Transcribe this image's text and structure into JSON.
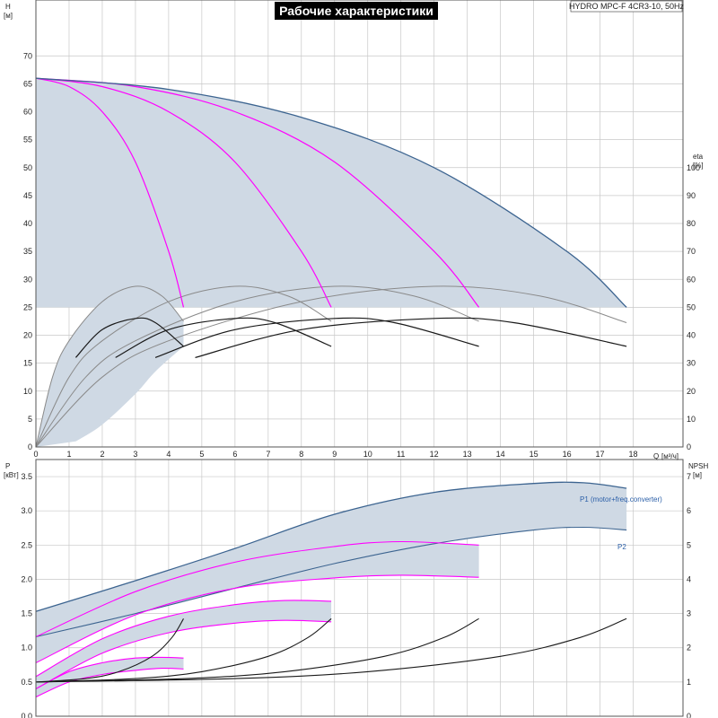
{
  "title": "Рабочие характеристики",
  "model": "HYDRO MPC-F 4CR3-10, 50Hz",
  "colors": {
    "area": "#cfd9e4",
    "envelope": "#3c6490",
    "pump_curve": "#ff00ff",
    "npsh": "#1a1a1a",
    "eta_light": "#8a8a8a",
    "grid": "#c8c8c8"
  },
  "chart_data": [
    {
      "type": "line",
      "name": "top",
      "xlabel": "Q",
      "xunit": "[м³/ч]",
      "ylabel_left": "H",
      "yunit_left": "[м]",
      "ylabel_right": "eta",
      "yunit_right": "[%]",
      "xlim": [
        0,
        19.5
      ],
      "ylim_left": [
        0,
        80
      ],
      "ylim_right": [
        0,
        160
      ],
      "x_ticks": [
        "0",
        "1",
        "2",
        "3",
        "4",
        "5",
        "6",
        "7",
        "8",
        "9",
        "10",
        "11",
        "12",
        "13",
        "14",
        "15",
        "16",
        "17",
        "18"
      ],
      "y_ticks_left": [
        "0",
        "5",
        "10",
        "15",
        "20",
        "25",
        "30",
        "35",
        "40",
        "45",
        "50",
        "55",
        "60",
        "65",
        "70"
      ],
      "y_ticks_right": [
        "0",
        "10",
        "20",
        "30",
        "40",
        "50",
        "60",
        "70",
        "80",
        "90",
        "100"
      ],
      "grid": true,
      "head_curves": [
        {
          "pumps": 1,
          "points": [
            [
              0,
              66
            ],
            [
              1,
              64.5
            ],
            [
              2,
              60
            ],
            [
              3,
              51
            ],
            [
              4,
              35
            ],
            [
              4.45,
              25
            ]
          ]
        },
        {
          "pumps": 2,
          "points": [
            [
              0,
              66
            ],
            [
              2,
              64.5
            ],
            [
              4,
              60
            ],
            [
              6,
              51
            ],
            [
              8,
              35
            ],
            [
              8.9,
              25
            ]
          ]
        },
        {
          "pumps": 3,
          "points": [
            [
              0,
              66
            ],
            [
              3,
              64.5
            ],
            [
              6,
              60
            ],
            [
              9,
              51
            ],
            [
              12,
              35
            ],
            [
              13.35,
              25
            ]
          ]
        },
        {
          "pumps": 4,
          "points": [
            [
              0,
              66
            ],
            [
              4,
              64
            ],
            [
              8,
              59
            ],
            [
              12,
              50
            ],
            [
              16,
              35
            ],
            [
              17.8,
              25
            ]
          ]
        }
      ],
      "head_envelope": {
        "setpoint_head": 25,
        "q_max": 17.8
      },
      "eta_light_curves": [
        {
          "points": [
            [
              0,
              0
            ],
            [
              0.5,
              25
            ],
            [
              1,
              38
            ],
            [
              2,
              52
            ],
            [
              3,
              57.5
            ],
            [
              3.8,
              54
            ],
            [
              4.45,
              45
            ]
          ]
        },
        {
          "points": [
            [
              0,
              0
            ],
            [
              1,
              25
            ],
            [
              2,
              38
            ],
            [
              4,
              52
            ],
            [
              6,
              57.5
            ],
            [
              7.6,
              54
            ],
            [
              8.9,
              45
            ]
          ]
        },
        {
          "points": [
            [
              0,
              0
            ],
            [
              1.5,
              25
            ],
            [
              3,
              38
            ],
            [
              6,
              52
            ],
            [
              9,
              57.5
            ],
            [
              11.4,
              54
            ],
            [
              13.35,
              45
            ]
          ]
        },
        {
          "points": [
            [
              0,
              0
            ],
            [
              2,
              25
            ],
            [
              4,
              38
            ],
            [
              8,
              52
            ],
            [
              12,
              57.5
            ],
            [
              15.2,
              54
            ],
            [
              17.8,
              44.5
            ]
          ]
        }
      ],
      "eta_dark_curves": [
        {
          "points": [
            [
              1.2,
              32
            ],
            [
              2,
              42
            ],
            [
              3,
              46
            ],
            [
              3.6,
              44.5
            ],
            [
              4.45,
              36
            ]
          ]
        },
        {
          "points": [
            [
              2.4,
              32
            ],
            [
              4,
              42
            ],
            [
              6,
              46
            ],
            [
              7.2,
              44.5
            ],
            [
              8.9,
              36
            ]
          ]
        },
        {
          "points": [
            [
              3.6,
              32
            ],
            [
              6,
              42
            ],
            [
              9,
              46
            ],
            [
              10.8,
              44.5
            ],
            [
              13.35,
              36
            ]
          ]
        },
        {
          "points": [
            [
              4.8,
              32
            ],
            [
              8,
              42
            ],
            [
              12,
              46
            ],
            [
              14.4,
              44.5
            ],
            [
              17.8,
              36
            ]
          ]
        }
      ],
      "eta_area_lower": [
        [
          1.2,
          2
        ],
        [
          2,
          8
        ],
        [
          3,
          19
        ],
        [
          3.6,
          27
        ],
        [
          4.45,
          36
        ]
      ]
    },
    {
      "type": "line",
      "name": "bottom",
      "ylabel_left": "P",
      "yunit_left": "[кВт]",
      "ylabel_right": "NPSH",
      "yunit_right": "[м]",
      "xlim": [
        0,
        19.5
      ],
      "ylim_left": [
        0,
        3.75
      ],
      "ylim_right": [
        0,
        7.5
      ],
      "y_ticks_left": [
        "0.0",
        "0.5",
        "1.0",
        "1.5",
        "2.0",
        "2.5",
        "3.0",
        "3.5"
      ],
      "y_ticks_right": [
        "0",
        "1",
        "2",
        "3",
        "4",
        "5",
        "6",
        "7"
      ],
      "grid": true,
      "p1_envelope": {
        "label": "P1 (motor+freq.converter)",
        "points": [
          [
            0,
            1.53
          ],
          [
            3,
            1.98
          ],
          [
            6,
            2.45
          ],
          [
            9,
            2.95
          ],
          [
            12,
            3.27
          ],
          [
            15,
            3.4
          ],
          [
            16.5,
            3.41
          ],
          [
            17.8,
            3.33
          ]
        ]
      },
      "p2_envelope": {
        "label": "P2",
        "points": [
          [
            0,
            1.16
          ],
          [
            3,
            1.5
          ],
          [
            6,
            1.87
          ],
          [
            9,
            2.23
          ],
          [
            12,
            2.52
          ],
          [
            15,
            2.72
          ],
          [
            16.5,
            2.76
          ],
          [
            17.8,
            2.72
          ]
        ]
      },
      "power_curves": [
        {
          "points": [
            [
              0,
              1.16
            ],
            [
              3,
              1.82
            ],
            [
              6,
              2.25
            ],
            [
              9,
              2.48
            ],
            [
              11,
              2.55
            ],
            [
              13.35,
              2.5
            ]
          ]
        },
        {
          "points": [
            [
              0,
              0.78
            ],
            [
              3,
              1.48
            ],
            [
              6,
              1.87
            ],
            [
              9,
              2.02
            ],
            [
              11,
              2.06
            ],
            [
              13.35,
              2.03
            ]
          ]
        },
        {
          "points": [
            [
              0,
              0.58
            ],
            [
              2,
              1.13
            ],
            [
              4,
              1.46
            ],
            [
              6,
              1.63
            ],
            [
              7.5,
              1.69
            ],
            [
              8.9,
              1.68
            ]
          ]
        },
        {
          "points": [
            [
              0,
              0.4
            ],
            [
              2,
              0.92
            ],
            [
              4,
              1.22
            ],
            [
              6,
              1.36
            ],
            [
              7.5,
              1.4
            ],
            [
              8.9,
              1.38
            ]
          ]
        },
        {
          "points": [
            [
              0,
              0.4
            ],
            [
              1,
              0.65
            ],
            [
              2,
              0.78
            ],
            [
              3,
              0.85
            ],
            [
              3.8,
              0.86
            ],
            [
              4.45,
              0.85
            ]
          ]
        },
        {
          "points": [
            [
              0,
              0.28
            ],
            [
              1,
              0.5
            ],
            [
              2,
              0.61
            ],
            [
              3,
              0.67
            ],
            [
              3.8,
              0.7
            ],
            [
              4.45,
              0.69
            ]
          ]
        }
      ],
      "npsh_curves": [
        {
          "points": [
            [
              0,
              1.0
            ],
            [
              1.5,
              1.1
            ],
            [
              2.5,
              1.3
            ],
            [
              3.5,
              1.75
            ],
            [
              4.1,
              2.3
            ],
            [
              4.45,
              2.85
            ]
          ]
        },
        {
          "points": [
            [
              0,
              1.0
            ],
            [
              3,
              1.1
            ],
            [
              5,
              1.3
            ],
            [
              7,
              1.75
            ],
            [
              8.2,
              2.3
            ],
            [
              8.9,
              2.85
            ]
          ]
        },
        {
          "points": [
            [
              0,
              1.0
            ],
            [
              4.5,
              1.1
            ],
            [
              7.5,
              1.3
            ],
            [
              10.5,
              1.75
            ],
            [
              12.3,
              2.3
            ],
            [
              13.35,
              2.85
            ]
          ]
        },
        {
          "points": [
            [
              0,
              1.0
            ],
            [
              6,
              1.1
            ],
            [
              10,
              1.3
            ],
            [
              14,
              1.75
            ],
            [
              16.4,
              2.3
            ],
            [
              17.8,
              2.85
            ]
          ]
        }
      ]
    }
  ]
}
